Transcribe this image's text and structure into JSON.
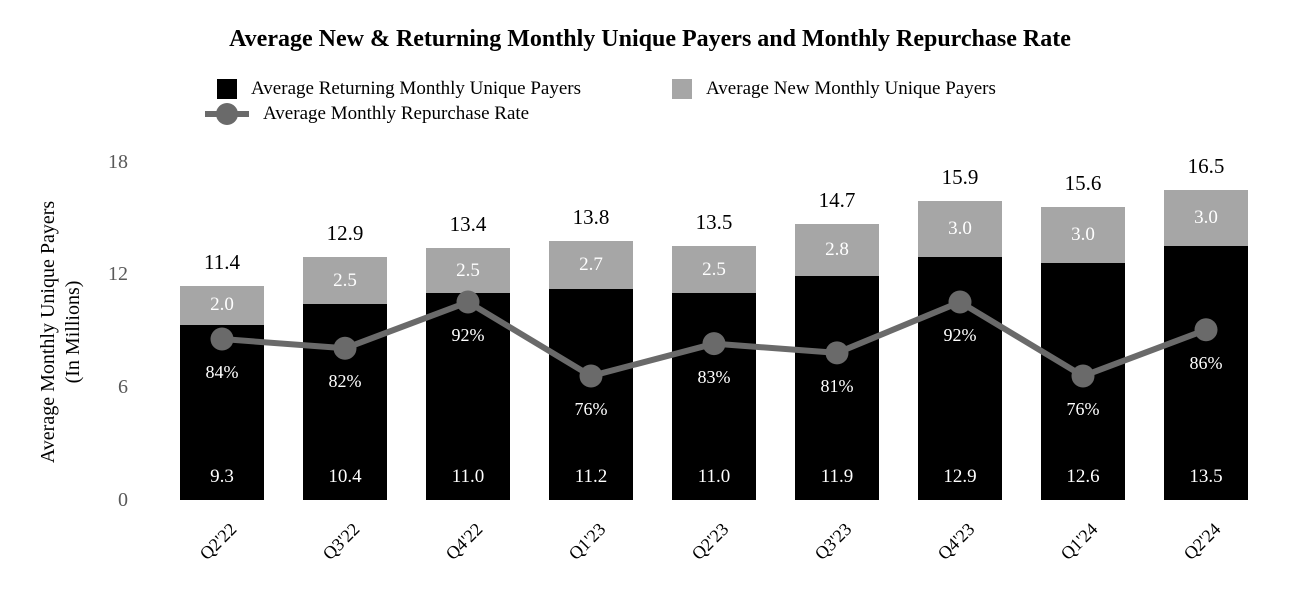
{
  "page": {
    "background": "#ffffff"
  },
  "chart_data": {
    "type": "bar",
    "subtype": "stacked-bars-with-line-overlay",
    "title": "Average New & Returning Monthly Unique Payers and Monthly Repurchase Rate",
    "categories": [
      "Q2'22",
      "Q3'22",
      "Q4'22",
      "Q1'23",
      "Q2'23",
      "Q3'23",
      "Q4'23",
      "Q1'24",
      "Q2'24"
    ],
    "series": [
      {
        "name": "Average Returning Monthly Unique Payers",
        "color": "#000000",
        "values": [
          9.3,
          10.4,
          11.0,
          11.2,
          11.0,
          11.9,
          12.9,
          12.6,
          13.5
        ]
      },
      {
        "name": "Average New Monthly Unique Payers",
        "color": "#a6a6a6",
        "values": [
          2.0,
          2.5,
          2.5,
          2.7,
          2.5,
          2.8,
          3.0,
          3.0,
          3.0
        ]
      }
    ],
    "totals": [
      11.4,
      12.9,
      13.4,
      13.8,
      13.5,
      14.7,
      15.9,
      15.6,
      16.5
    ],
    "line_series": {
      "name": "Average Monthly Repurchase Rate",
      "color": "#6a6a6a",
      "values_pct": [
        84,
        82,
        92,
        76,
        83,
        81,
        92,
        76,
        86
      ]
    },
    "ylabel_line1": "Average Monthly Unique Payers",
    "ylabel_line2": "(In Millions)",
    "yticks": [
      18,
      12,
      6,
      0
    ],
    "ylim": [
      0,
      18
    ],
    "grid": "off",
    "legend_position": "top",
    "colors": {
      "returning_bar": "#000000",
      "new_bar": "#a6a6a6",
      "rate_line": "#6a6a6a",
      "tick_text": "#595959",
      "bar_value_text": "#ffffff",
      "total_text": "#000000"
    }
  }
}
